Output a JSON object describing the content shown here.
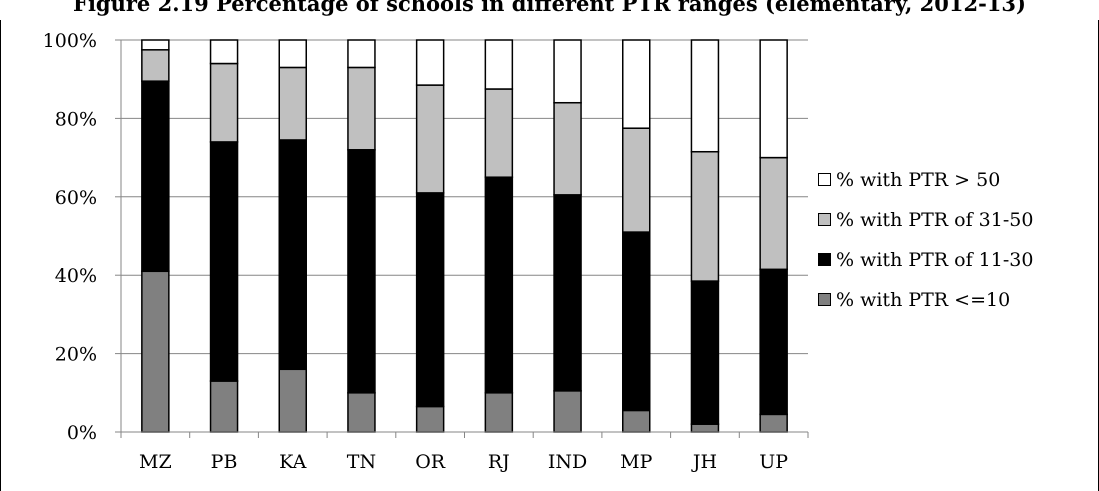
{
  "chart_data": {
    "type": "bar",
    "stacked": true,
    "title": "Figure 2.19 Percentage of schools in different PTR ranges (elementary, 2012-13)",
    "xlabel": "",
    "ylabel": "",
    "ylim": [
      0,
      100
    ],
    "yticks": [
      "0%",
      "20%",
      "40%",
      "60%",
      "80%",
      "100%"
    ],
    "grid": true,
    "legend_position": "right",
    "categories": [
      "MZ",
      "PB",
      "KA",
      "TN",
      "OR",
      "RJ",
      "IND",
      "MP",
      "JH",
      "UP"
    ],
    "series": [
      {
        "name": "% with PTR <=10",
        "color": "#808080",
        "values": [
          41,
          13,
          16,
          10,
          6.5,
          10,
          10.5,
          5.5,
          2,
          4.5
        ]
      },
      {
        "name": "% with PTR of 11-30",
        "color": "#000000",
        "values": [
          48.5,
          61,
          58.5,
          62,
          54.5,
          55,
          50,
          45.5,
          36.5,
          37
        ]
      },
      {
        "name": "% with PTR of 31-50",
        "color": "#c0c0c0",
        "values": [
          8,
          20,
          18.5,
          21,
          27.5,
          22.5,
          23.5,
          26.5,
          33,
          28.5
        ]
      },
      {
        "name": "% with PTR > 50",
        "color": "#ffffff",
        "values": [
          2.5,
          6,
          7,
          7,
          11.5,
          12.5,
          16,
          22.5,
          28.5,
          30
        ]
      }
    ]
  }
}
